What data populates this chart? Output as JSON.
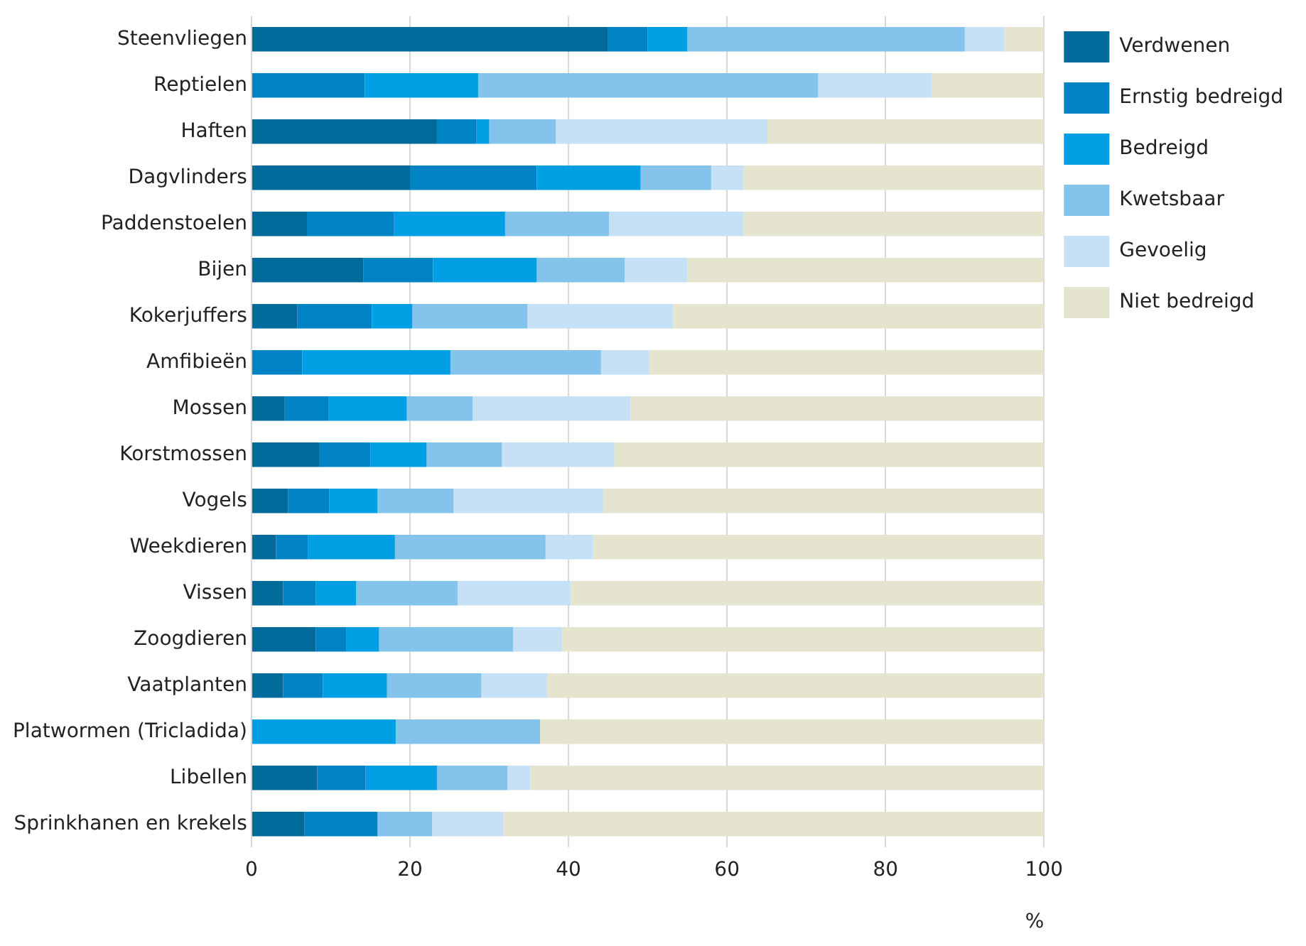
{
  "chart_data": {
    "type": "bar",
    "orientation": "horizontal",
    "stacked": true,
    "xlabel": "%",
    "categories": [
      "Steenvliegen",
      "Reptielen",
      "Haften",
      "Dagvlinders",
      "Paddenstoelen",
      "Bijen",
      "Kokerjuffers",
      "Amfibieën",
      "Mossen",
      "Korstmossen",
      "Vogels",
      "Weekdieren",
      "Vissen",
      "Zoogdieren",
      "Vaatplanten",
      "Platwormen (Tricladida)",
      "Libellen",
      "Sprinkhanen en krekels"
    ],
    "series": [
      {
        "name": "Verdwenen",
        "color": "#006b9a",
        "values": [
          45,
          0,
          23.4,
          20,
          7,
          14.1,
          5.8,
          0,
          4.2,
          8.6,
          4.6,
          3.1,
          4,
          8.1,
          4,
          0,
          8.3,
          6.7
        ]
      },
      {
        "name": "Ernstig bedreigd",
        "color": "#0083c4",
        "values": [
          5,
          14.3,
          5,
          16,
          11,
          8.8,
          9.4,
          6.4,
          5.5,
          6.4,
          5.2,
          4,
          4.1,
          3.9,
          5,
          0,
          6.1,
          9.2
        ]
      },
      {
        "name": "Bedreigd",
        "color": "#009fe3",
        "values": [
          5,
          14.3,
          1.6,
          13.1,
          14,
          13.1,
          5.1,
          18.7,
          9.9,
          7.1,
          6.1,
          11,
          5.1,
          4.1,
          8.1,
          18.2,
          9,
          0
        ]
      },
      {
        "name": "Kwetsbaar",
        "color": "#83c3ec",
        "values": [
          35,
          42.9,
          8.4,
          8.9,
          13.1,
          11.1,
          14.5,
          19,
          8.3,
          9.5,
          9.6,
          19,
          12.8,
          16.9,
          11.9,
          18.2,
          8.9,
          6.9
        ]
      },
      {
        "name": "Gevoelig",
        "color": "#c6e1f5",
        "values": [
          5,
          14.3,
          26.7,
          4.1,
          17,
          7.9,
          18.4,
          6.1,
          19.9,
          14.2,
          18.9,
          6,
          14.3,
          6.2,
          8.3,
          0,
          2.9,
          9
        ]
      },
      {
        "name": "Niet bedreigd",
        "color": "#e5e4cf",
        "values": [
          5,
          14.2,
          34.9,
          37.9,
          37.9,
          45,
          46.8,
          49.8,
          52.2,
          54.2,
          55.6,
          56.9,
          59.7,
          60.8,
          62.7,
          63.6,
          64.8,
          68.2
        ]
      }
    ],
    "xlim": [
      0,
      100
    ],
    "xticks": [
      0,
      20,
      40,
      60,
      80,
      100
    ],
    "grid": "x",
    "legend": "top right"
  }
}
